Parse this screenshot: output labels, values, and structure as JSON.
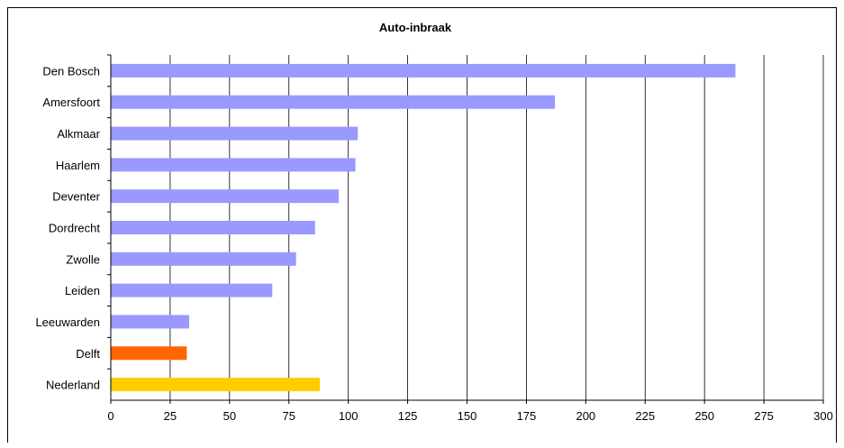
{
  "chart_data": {
    "type": "bar",
    "orientation": "horizontal",
    "title": "Auto-inbraak",
    "xlabel": "",
    "ylabel": "",
    "categories": [
      "Den Bosch",
      "Amersfoort",
      "Alkmaar",
      "Haarlem",
      "Deventer",
      "Dordrecht",
      "Zwolle",
      "Leiden",
      "Leeuwarden",
      "Delft",
      "Nederland"
    ],
    "values": [
      263,
      187,
      104,
      103,
      96,
      86,
      78,
      68,
      33,
      32,
      88
    ],
    "colors": [
      "#9999ff",
      "#9999ff",
      "#9999ff",
      "#9999ff",
      "#9999ff",
      "#9999ff",
      "#9999ff",
      "#9999ff",
      "#9999ff",
      "#ff6600",
      "#ffcc00"
    ],
    "xlim": [
      0,
      300
    ],
    "xticks": [
      0,
      25,
      50,
      75,
      100,
      125,
      150,
      175,
      200,
      225,
      250,
      275,
      300
    ],
    "grid": "vertical",
    "legend": "none"
  }
}
